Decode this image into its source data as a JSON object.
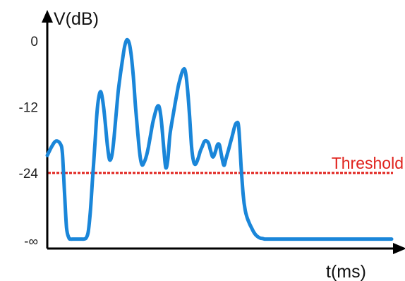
{
  "chart_data": {
    "type": "line",
    "title": "",
    "ylabel": "V(dB)",
    "xlabel": "t(ms)",
    "yticks": [
      {
        "label": "0",
        "value": 0
      },
      {
        "label": "-12",
        "value": -12
      },
      {
        "label": "-24",
        "value": -24
      },
      {
        "label": "-∞",
        "value": -48
      }
    ],
    "ylim": [
      -48,
      6
    ],
    "xlim": [
      0,
      100
    ],
    "grid": false,
    "line_color": "#1a86d9",
    "threshold": {
      "label": "Threshold",
      "value": -24,
      "color": "#e0221c"
    },
    "series": [
      {
        "x": [
          0,
          1.3,
          2.5,
          3.8,
          4.4,
          5.0,
          5.6,
          6.3,
          6.9,
          7.5,
          8.1,
          8.8,
          9.4,
          10.0,
          10.6,
          11.3,
          11.9,
          12.5,
          13.1,
          13.8,
          14.4,
          15.0,
          15.6,
          16.3,
          16.9,
          17.5,
          18.1,
          18.8,
          19.4,
          20.0,
          20.6,
          21.3,
          21.9,
          22.5,
          23.1,
          23.8,
          24.4,
          25.0,
          25.6,
          26.3,
          26.9,
          27.5,
          28.1,
          28.8,
          29.4,
          30.0,
          30.6,
          31.3,
          31.9,
          32.5,
          33.1,
          33.8,
          34.4,
          35.0,
          35.6,
          36.3,
          36.9,
          37.5,
          38.1,
          38.8,
          39.4,
          40.0,
          40.6,
          41.3,
          41.9,
          42.5,
          43.1,
          43.8,
          44.4,
          45.0,
          45.6,
          46.3,
          46.9,
          47.5,
          48.1,
          48.8,
          49.4,
          50.0,
          50.6,
          51.3,
          51.9,
          52.5,
          53.1,
          53.8,
          54.4,
          55.0,
          55.6,
          56.3,
          56.9,
          57.5,
          58.1,
          58.8,
          59.4,
          60.0,
          60.6,
          61.3,
          61.9,
          62.5,
          63.1,
          63.8,
          64.4,
          65.0,
          65.6,
          66.3,
          66.9,
          67.5,
          68.1,
          68.8,
          69.4,
          70.0,
          70.6,
          71.3,
          71.9,
          72.5,
          73.1,
          73.8,
          74.4,
          75.0,
          75.6,
          76.3,
          76.9,
          77.5,
          78.1,
          78.8,
          79.4,
          80.0,
          82.5,
          85.0,
          87.5,
          90.0,
          93.8,
          97.5,
          100
        ],
        "y": [
          -20.8,
          -19.2,
          -18.2,
          -18.7,
          -20.5,
          -30.8,
          -43.4,
          -47.0,
          -47.4,
          -47.4,
          -47.4,
          -47.4,
          -47.4,
          -47.4,
          -47.4,
          -47.0,
          -44.8,
          -37.8,
          -27.0,
          -19.2,
          -13.3,
          -10.1,
          -9.3,
          -11.7,
          -15.3,
          -19.2,
          -21.6,
          -20.7,
          -17.5,
          -13.3,
          -9.2,
          -5.8,
          -3.2,
          -0.9,
          0.2,
          -0.4,
          -2.7,
          -6.5,
          -11.7,
          -16.8,
          -20.7,
          -22.5,
          -22.1,
          -20.9,
          -19.2,
          -17.1,
          -15.0,
          -13.2,
          -12.0,
          -12.0,
          -14.3,
          -19.2,
          -23.0,
          -21.6,
          -17.2,
          -14.4,
          -12.2,
          -10.1,
          -8.1,
          -6.4,
          -5.3,
          -5.3,
          -7.9,
          -13.3,
          -19.2,
          -21.9,
          -22.4,
          -21.4,
          -20.1,
          -19.2,
          -18.3,
          -18.2,
          -18.7,
          -20.1,
          -21.1,
          -20.2,
          -18.9,
          -18.9,
          -20.8,
          -22.6,
          -21.4,
          -20.1,
          -18.7,
          -17.1,
          -15.6,
          -14.9,
          -15.7,
          -22.8,
          -31.8,
          -37.3,
          -40.0,
          -42.1,
          -43.6,
          -45.0,
          -46.0,
          -46.7,
          -47.1,
          -47.2,
          -47.4,
          -47.4,
          -47.4,
          -47.4,
          -47.4,
          -47.4,
          -47.4,
          -47.4,
          -47.4,
          -47.4,
          -47.4,
          -47.4,
          -47.4,
          -47.4,
          -47.4,
          -47.4,
          -47.4,
          -47.4,
          -47.4,
          -47.4,
          -47.4,
          -47.4,
          -47.4,
          -47.4,
          -47.4,
          -47.4,
          -47.4,
          -47.4,
          -47.4,
          -47.4,
          -47.4,
          -47.4,
          -47.4,
          -47.4,
          -47.4
        ]
      }
    ]
  }
}
